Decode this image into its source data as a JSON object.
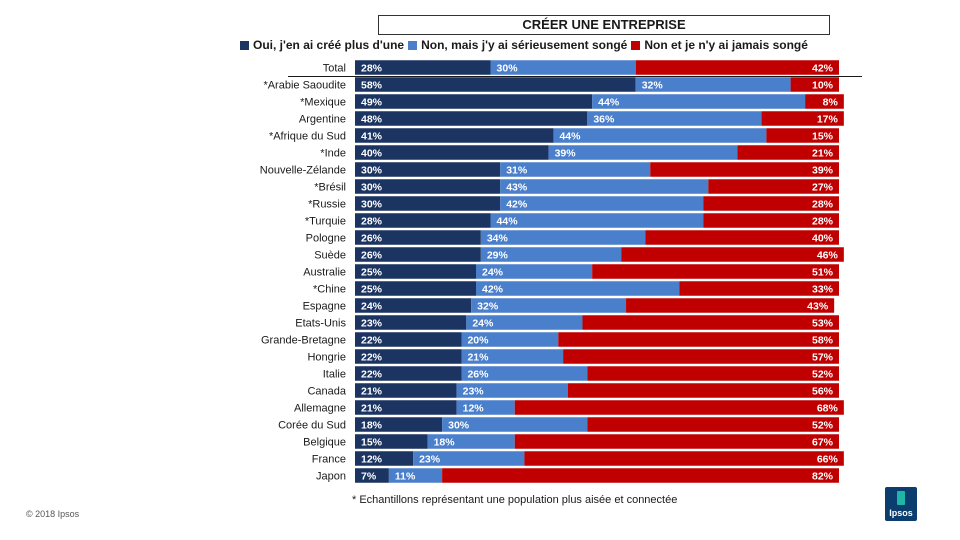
{
  "chart_data": {
    "type": "bar",
    "orientation": "horizontal",
    "stacked": true,
    "title": "CRÉER UNE ENTREPRISE",
    "categories": [
      "Total",
      "*Arabie Saoudite",
      "*Mexique",
      "Argentine",
      "*Afrique du Sud",
      "*Inde",
      "Nouvelle-Zélande",
      "*Brésil",
      "*Russie",
      "*Turquie",
      "Pologne",
      "Suède",
      "Australie",
      "*Chine",
      "Espagne",
      "Etats-Unis",
      "Grande-Bretagne",
      "Hongrie",
      "Italie",
      "Canada",
      "Allemagne",
      "Corée du Sud",
      "Belgique",
      "France",
      "Japon"
    ],
    "series": [
      {
        "name": "Oui, j'en ai créé plus d'une",
        "color": "#1c3461",
        "values": [
          28,
          58,
          49,
          48,
          41,
          40,
          30,
          30,
          30,
          28,
          26,
          26,
          25,
          25,
          24,
          23,
          22,
          22,
          22,
          21,
          21,
          18,
          15,
          12,
          7
        ]
      },
      {
        "name": "Non, mais j'y ai sérieusement songé",
        "color": "#4a7fcb",
        "values": [
          30,
          32,
          44,
          36,
          44,
          39,
          31,
          43,
          42,
          44,
          34,
          29,
          24,
          42,
          32,
          24,
          20,
          21,
          26,
          23,
          12,
          30,
          18,
          23,
          11
        ]
      },
      {
        "name": "Non et je n'y ai jamais songé",
        "color": "#c00000",
        "values": [
          42,
          10,
          8,
          17,
          15,
          21,
          39,
          27,
          28,
          28,
          40,
          46,
          51,
          33,
          43,
          53,
          58,
          57,
          52,
          56,
          68,
          52,
          67,
          66,
          82
        ]
      }
    ],
    "value_suffix": "%",
    "xlim": [
      0,
      100
    ]
  },
  "footnote": "* Echantillons représentant une population plus aisée et connectée",
  "copyright": "© 2018 Ipsos",
  "logo_text": "Ipsos"
}
